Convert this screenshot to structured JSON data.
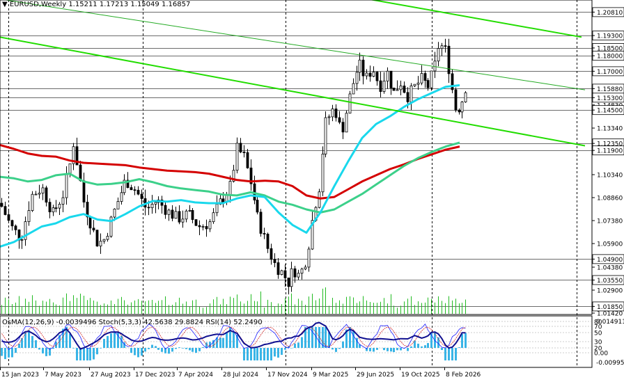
{
  "header": {
    "symbol": "EURUSD,Weekly",
    "open": "1.15211",
    "high": "1.17213",
    "low": "1.15049",
    "close": "1.16857"
  },
  "oscillator_header": {
    "osma": "OsMA(12,26,9) -0.0039496",
    "stoch": "Stoch(5,3,3) 42.5638 29.8824",
    "rsi": "RSI(14) 52.2490"
  },
  "chart_data": {
    "type": "line",
    "price_axis": {
      "range": [
        1.0142,
        1.215
      ],
      "ticks": [
        "1.20810",
        "1.19300",
        "1.18500",
        "1.18000",
        "1.17000",
        "1.15880",
        "1.15300",
        "1.14830",
        "1.14500",
        "1.13340",
        "1.12350",
        "1.11900",
        "1.10340",
        "1.08860",
        "1.07380",
        "1.05900",
        "1.04900",
        "1.04380",
        "1.03550",
        "1.02900",
        "1.01850",
        "1.01420"
      ],
      "highlighted_levels": [
        "1.20810",
        "1.19300",
        "1.18500",
        "1.18000",
        "1.17000",
        "1.15880",
        "1.15300",
        "1.14500",
        "1.12350",
        "1.11900",
        "1.04900",
        "1.03550",
        "1.01850"
      ]
    },
    "oscillator_axis": {
      "top_label": "0.0149116",
      "bottom_label": "-0.009951",
      "levels": [
        "80",
        "70",
        "50",
        "30",
        "20",
        "0.00"
      ]
    },
    "x_ticks": [
      "15 Jan 2023",
      "7 May 2023",
      "27 Aug 2023",
      "17 Dec 2023",
      "7 Apr 2024",
      "28 Jul 2024",
      "17 Nov 2024",
      "9 Mar 2025",
      "29 Jun 2025",
      "19 Oct 2025",
      "8 Feb 2026"
    ],
    "period_separators": [
      "Jan 2023",
      "Jan 2024",
      "Jan 2025",
      "Jan 2026"
    ],
    "series": [
      {
        "role": "ma_red",
        "color": "#d40000",
        "x": [
          0,
          20,
          40,
          60,
          80,
          100,
          120,
          140,
          160,
          180,
          200,
          220,
          240,
          260,
          280,
          300,
          320,
          340,
          360,
          380,
          400,
          420,
          440,
          460,
          480,
          500,
          520,
          540,
          560,
          580,
          600,
          620,
          640,
          660
        ],
        "values": [
          1.1225,
          1.12,
          1.117,
          1.1155,
          1.115,
          1.1125,
          1.111,
          1.1105,
          1.11,
          1.1095,
          1.108,
          1.107,
          1.106,
          1.1055,
          1.105,
          1.104,
          1.102,
          1.1,
          1.099,
          1.0995,
          1.099,
          1.096,
          1.09,
          1.088,
          1.089,
          1.094,
          1.099,
          1.103,
          1.107,
          1.11,
          1.1135,
          1.1165,
          1.1195,
          1.1215
        ]
      },
      {
        "role": "ma_green",
        "color": "#3cd08a",
        "x": [
          0,
          20,
          40,
          60,
          80,
          100,
          120,
          140,
          160,
          180,
          200,
          220,
          240,
          260,
          280,
          300,
          320,
          340,
          360,
          380,
          400,
          420,
          440,
          460,
          480,
          500,
          520,
          540,
          560,
          580,
          600,
          620,
          640,
          660
        ],
        "values": [
          1.102,
          1.101,
          1.099,
          1.1,
          1.103,
          1.104,
          1.099,
          1.097,
          1.0975,
          1.0985,
          1.1005,
          1.0985,
          1.096,
          1.0945,
          1.0935,
          1.0925,
          1.0905,
          1.09,
          1.092,
          1.09,
          1.086,
          1.084,
          1.081,
          1.079,
          1.081,
          1.086,
          1.091,
          1.097,
          1.103,
          1.109,
          1.114,
          1.118,
          1.1215,
          1.124
        ]
      },
      {
        "role": "ma_cyan",
        "color": "#19d8ec",
        "x": [
          0,
          20,
          40,
          60,
          80,
          100,
          120,
          140,
          160,
          180,
          200,
          220,
          240,
          260,
          280,
          300,
          320,
          340,
          360,
          380,
          400,
          420,
          440,
          460,
          480,
          500,
          520,
          540,
          560,
          580,
          600,
          620,
          640,
          660
        ],
        "values": [
          1.057,
          1.06,
          1.065,
          1.07,
          1.072,
          1.076,
          1.078,
          1.0745,
          1.0735,
          1.078,
          1.083,
          1.0865,
          1.086,
          1.087,
          1.0855,
          1.085,
          1.085,
          1.088,
          1.09,
          1.089,
          1.079,
          1.071,
          1.066,
          1.079,
          1.096,
          1.112,
          1.127,
          1.136,
          1.141,
          1.147,
          1.152,
          1.156,
          1.16,
          1.161
        ]
      },
      {
        "role": "price_path",
        "color": "#000000",
        "x": [
          0,
          15,
          30,
          45,
          60,
          75,
          90,
          100,
          105,
          120,
          140,
          150,
          165,
          180,
          195,
          210,
          225,
          240,
          255,
          270,
          285,
          300,
          315,
          330,
          340,
          350,
          360,
          370,
          385,
          395,
          405,
          415,
          420,
          430,
          440,
          450,
          460,
          465,
          480,
          490,
          500,
          505,
          515,
          525,
          535,
          545,
          555,
          565,
          575,
          585,
          595,
          605,
          615,
          625,
          630,
          640,
          650,
          655,
          665,
          673
        ],
        "values": [
          1.085,
          1.07,
          1.062,
          1.09,
          1.095,
          1.078,
          1.09,
          1.11,
          1.124,
          1.085,
          1.059,
          1.062,
          1.082,
          1.1,
          1.093,
          1.081,
          1.087,
          1.08,
          1.075,
          1.078,
          1.07,
          1.072,
          1.085,
          1.095,
          1.12,
          1.115,
          1.098,
          1.075,
          1.055,
          1.045,
          1.04,
          1.033,
          1.043,
          1.038,
          1.05,
          1.08,
          1.1,
          1.135,
          1.147,
          1.13,
          1.15,
          1.16,
          1.175,
          1.165,
          1.172,
          1.16,
          1.17,
          1.156,
          1.163,
          1.154,
          1.16,
          1.165,
          1.16,
          1.175,
          1.188,
          1.183,
          1.155,
          1.143,
          1.153,
          1.1686
        ]
      }
    ],
    "trendlines": [
      {
        "color": "#22dd00",
        "points": [
          [
            0,
            1.192
          ],
          [
            840,
            1.122
          ]
        ]
      },
      {
        "color": "#22dd00",
        "points": [
          [
            510,
            1.218
          ],
          [
            835,
            1.192
          ]
        ]
      },
      {
        "color": "#22aa22",
        "points": [
          [
            0,
            1.2165
          ],
          [
            840,
            1.158
          ]
        ],
        "style": "dotted-end"
      }
    ],
    "horizontal_lines": [
      "1.20810",
      "1.19300",
      "1.18500",
      "1.18000",
      "1.17000",
      "1.15880",
      "1.15300",
      "1.14500",
      "1.12350",
      "1.11900",
      "1.04900",
      "1.03550",
      "1.01850"
    ]
  }
}
